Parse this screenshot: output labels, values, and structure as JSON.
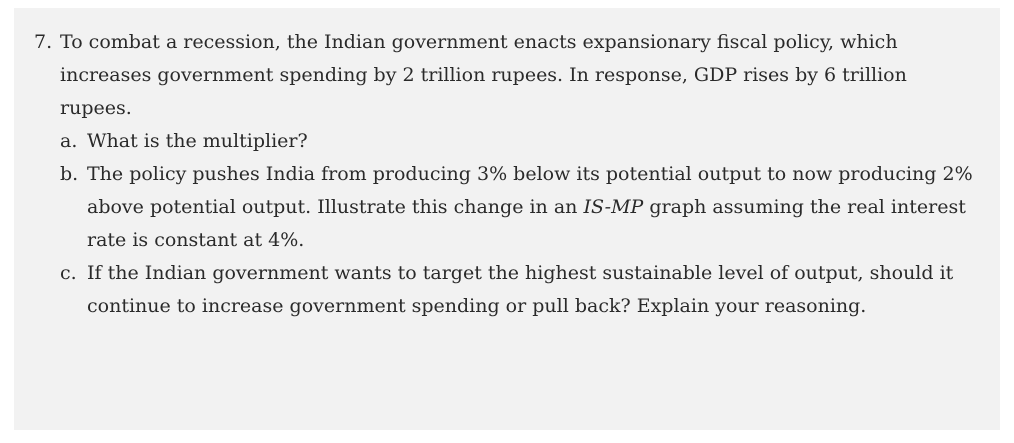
{
  "question": {
    "number": "7.",
    "text": "To combat a recession, the Indian government enacts expansionary fiscal policy, which increases government spending by 2 trillion rupees. In response, GDP rises by 6 trillion rupees.",
    "parts": [
      {
        "letter": "a.",
        "text": "What is the multiplier?"
      },
      {
        "letter": "b.",
        "text_before": "The policy pushes India from producing 3% below its potential output to now producing 2% above potential output. Illustrate this change in an ",
        "text_italic": "IS-MP",
        "text_after": " graph assuming the real interest rate is constant at 4%."
      },
      {
        "letter": "c.",
        "text": "If the Indian government wants to target the highest sustainable level of output, should it continue to increase government spending or pull back? Explain your reasoning."
      }
    ]
  }
}
